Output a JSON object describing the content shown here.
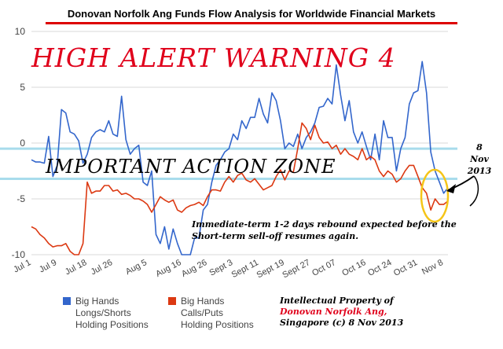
{
  "banner_title": "Donovan Norfolk Ang Funds Flow Analysis for Worldwide Financial Markets",
  "annotations": {
    "alert": "HIGH ALERT WARNING 4",
    "zone": "IMPORTANT ACTION ZONE",
    "date_note": [
      "8",
      "Nov",
      "2013"
    ],
    "rebound": [
      "Immediate-term 1-2 days rebound expected before the",
      "Short-term sell-off resumes again."
    ],
    "ip": [
      "Intellectual Property of",
      "Donovan Norfolk Ang,",
      "Singapore (c) 8 Nov 2013"
    ]
  },
  "colors": {
    "blue": "#3366cc",
    "red": "#dc3912",
    "zone_line": "#a8dcec",
    "highlight": "#f5c518",
    "banner_rule": "#dd0000",
    "alert_text": "#e0001b"
  },
  "chart_data": {
    "type": "line",
    "title": "",
    "xlabel": "",
    "ylabel": "",
    "ylim": [
      -10,
      10
    ],
    "yticks": [
      10,
      5,
      0,
      -5,
      -10
    ],
    "x_ticks": [
      {
        "label": "Jul 1",
        "index": 0
      },
      {
        "label": "Jul 9",
        "index": 6
      },
      {
        "label": "Jul 18",
        "index": 13
      },
      {
        "label": "Jul 26",
        "index": 19
      },
      {
        "label": "Aug 5",
        "index": 27
      },
      {
        "label": "Aug 16",
        "index": 35
      },
      {
        "label": "Aug 26",
        "index": 41
      },
      {
        "label": "Sept 3",
        "index": 47
      },
      {
        "label": "Sept 11",
        "index": 53
      },
      {
        "label": "Sept 19",
        "index": 59
      },
      {
        "label": "Sept 27",
        "index": 65
      },
      {
        "label": "Oct 07",
        "index": 71
      },
      {
        "label": "Oct 16",
        "index": 78
      },
      {
        "label": "Oct 24",
        "index": 84
      },
      {
        "label": "Oct 31",
        "index": 90
      },
      {
        "label": "Nov 8",
        "index": 96
      }
    ],
    "zone_lines": [
      -0.5,
      -3.2
    ],
    "grid": true,
    "legend_position": "bottom",
    "series": [
      {
        "name": "Big Hands Longs/Shorts Holding Positions",
        "color": "#3366cc",
        "values": [
          -1.5,
          -1.7,
          -1.7,
          -1.8,
          0.6,
          -3.0,
          -2.0,
          3.0,
          2.7,
          1.0,
          0.8,
          0.2,
          -1.8,
          -1.0,
          0.5,
          1.0,
          1.2,
          1.0,
          2.0,
          0.8,
          0.6,
          4.2,
          0.3,
          -1.0,
          -0.5,
          -0.2,
          -3.5,
          -3.8,
          -2.5,
          -8.2,
          -9.0,
          -7.5,
          -9.5,
          -7.7,
          -9.0,
          -10.0,
          -10.0,
          -10.0,
          -8.5,
          -8.5,
          -6.0,
          -5.5,
          -3.5,
          -2.0,
          -1.5,
          -0.8,
          -0.5,
          0.8,
          0.3,
          2.0,
          1.3,
          2.3,
          2.3,
          4.0,
          2.6,
          1.8,
          4.5,
          3.8,
          2.0,
          -0.5,
          0.0,
          -0.3,
          0.8,
          -0.5,
          0.5,
          1.0,
          1.8,
          3.2,
          3.3,
          4.0,
          3.5,
          7.0,
          4.3,
          2.0,
          3.8,
          1.0,
          0.0,
          1.0,
          -0.3,
          -1.5,
          0.8,
          -1.5,
          2.0,
          0.5,
          0.5,
          -2.5,
          -0.5,
          0.5,
          3.5,
          4.5,
          4.7,
          7.3,
          4.5,
          -0.8,
          -2.5,
          -3.5,
          -4.5,
          -4.0
        ]
      },
      {
        "name": "Big Hands Calls/Puts Holding Positions",
        "color": "#dc3912",
        "values": [
          -7.5,
          -7.7,
          -8.2,
          -8.5,
          -9.0,
          -9.3,
          -9.2,
          -9.2,
          -9.0,
          -9.7,
          -10.0,
          -10.0,
          -9.0,
          -3.5,
          -4.5,
          -4.3,
          -4.3,
          -3.8,
          -3.8,
          -4.3,
          -4.2,
          -4.6,
          -4.5,
          -4.7,
          -5.0,
          -5.0,
          -5.2,
          -5.5,
          -6.2,
          -5.5,
          -4.8,
          -5.1,
          -5.3,
          -5.1,
          -6.0,
          -6.2,
          -5.8,
          -5.6,
          -5.5,
          -5.3,
          -5.6,
          -4.8,
          -4.2,
          -4.2,
          -4.3,
          -3.5,
          -3.0,
          -3.5,
          -2.9,
          -2.7,
          -3.3,
          -3.5,
          -3.2,
          -3.7,
          -4.2,
          -4.0,
          -3.8,
          -3.0,
          -2.4,
          -3.3,
          -2.5,
          -2.6,
          -0.5,
          1.8,
          1.3,
          0.3,
          1.6,
          0.5,
          0.0,
          0.1,
          -0.5,
          -0.2,
          -1.0,
          -0.5,
          -1.0,
          -1.2,
          -1.5,
          -0.5,
          -1.5,
          -1.2,
          -1.5,
          -2.5,
          -3.0,
          -2.5,
          -2.8,
          -3.5,
          -3.2,
          -2.5,
          -2.0,
          -2.0,
          -3.0,
          -4.0,
          -4.5,
          -6.0,
          -5.0,
          -5.5,
          -5.5,
          -5.2
        ]
      }
    ]
  }
}
